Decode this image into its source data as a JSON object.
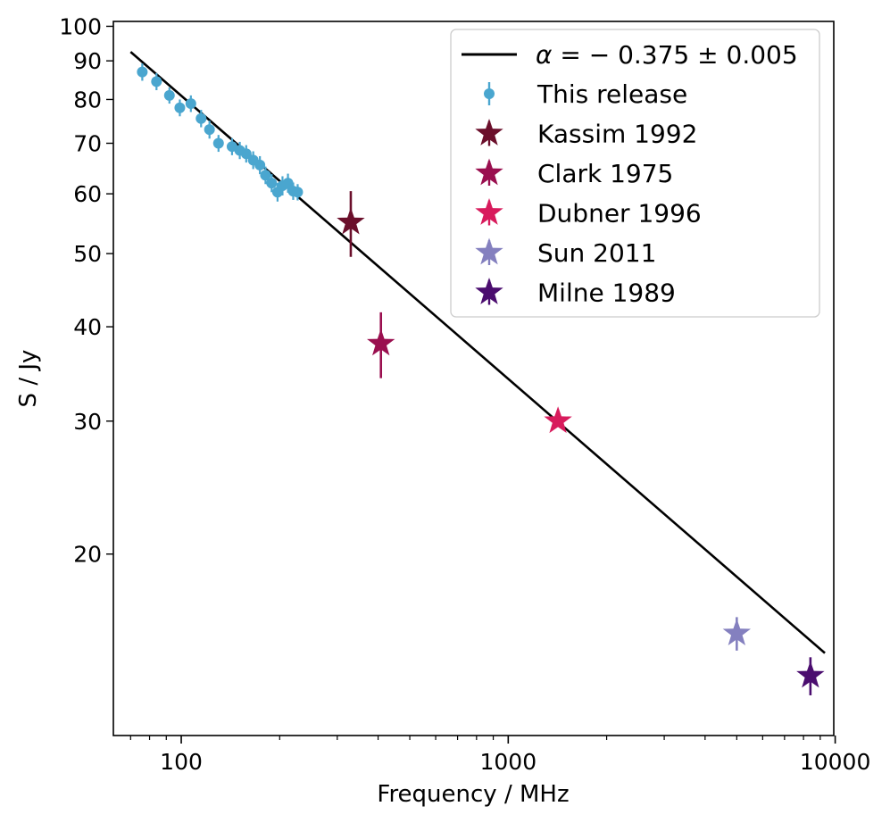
{
  "chart_data": {
    "type": "scatter",
    "xlabel": "Frequency / MHz",
    "ylabel": "S / Jy",
    "xscale": "log",
    "yscale": "log",
    "xlim": [
      62,
      9900
    ],
    "ylim": [
      11.5,
      101.5
    ],
    "x_ticks": [
      {
        "value": 100,
        "label": "100"
      },
      {
        "value": 1000,
        "label": "1000"
      },
      {
        "value": 10000,
        "label": "10000"
      }
    ],
    "y_ticks": [
      {
        "value": 20,
        "label": "20"
      },
      {
        "value": 30,
        "label": "30"
      },
      {
        "value": 40,
        "label": "40"
      },
      {
        "value": 50,
        "label": "50"
      },
      {
        "value": 60,
        "label": "60"
      },
      {
        "value": 70,
        "label": "70"
      },
      {
        "value": 80,
        "label": "80"
      },
      {
        "value": 90,
        "label": "90"
      },
      {
        "value": 100,
        "label": "100"
      }
    ],
    "fit_line": {
      "name_prefix": "α = ",
      "name_value": "− 0.375 ± 0.005",
      "alpha": -0.375,
      "x_range": [
        70,
        9300
      ],
      "ref_x": 70,
      "ref_y": 92.5,
      "color": "#000000"
    },
    "series": [
      {
        "name": "This release",
        "marker": "circle",
        "color": "#4aa6cf",
        "points": [
          {
            "x": 76,
            "y": 87,
            "err": 2.3
          },
          {
            "x": 84,
            "y": 84.5,
            "err": 2.2
          },
          {
            "x": 92,
            "y": 81,
            "err": 2.0
          },
          {
            "x": 99,
            "y": 78,
            "err": 2.0
          },
          {
            "x": 107,
            "y": 79,
            "err": 2.0
          },
          {
            "x": 115,
            "y": 75.5,
            "err": 2.0
          },
          {
            "x": 122,
            "y": 73,
            "err": 2.0
          },
          {
            "x": 130,
            "y": 70,
            "err": 1.8
          },
          {
            "x": 143,
            "y": 69.3,
            "err": 1.8
          },
          {
            "x": 151,
            "y": 68.5,
            "err": 1.8
          },
          {
            "x": 158,
            "y": 67.8,
            "err": 1.8
          },
          {
            "x": 166,
            "y": 66.5,
            "err": 1.8
          },
          {
            "x": 174,
            "y": 65.5,
            "err": 1.8
          },
          {
            "x": 181,
            "y": 63.5,
            "err": 1.7
          },
          {
            "x": 189,
            "y": 62,
            "err": 1.7
          },
          {
            "x": 197,
            "y": 60.3,
            "err": 1.7
          },
          {
            "x": 204,
            "y": 61.5,
            "err": 1.8
          },
          {
            "x": 212,
            "y": 62,
            "err": 1.8
          },
          {
            "x": 220,
            "y": 60.5,
            "err": 1.6
          },
          {
            "x": 227,
            "y": 60.3,
            "err": 1.5
          }
        ]
      },
      {
        "name": "Kassim 1992",
        "marker": "star",
        "color": "#6b0f2b",
        "points": [
          {
            "x": 330,
            "y": 55,
            "err": 5.5
          }
        ]
      },
      {
        "name": "Clark 1975",
        "marker": "star",
        "color": "#9a0f4f",
        "points": [
          {
            "x": 408,
            "y": 38,
            "err": 3.8
          }
        ]
      },
      {
        "name": "Dubner 1996",
        "marker": "star",
        "color": "#d81b5c",
        "points": [
          {
            "x": 1420,
            "y": 30,
            "err": 0
          }
        ]
      },
      {
        "name": "Sun 2011",
        "marker": "star",
        "color": "#8480bf",
        "points": [
          {
            "x": 5000,
            "y": 15.7,
            "err": 0.8
          }
        ]
      },
      {
        "name": "Milne 1989",
        "marker": "star",
        "color": "#4b0d6f",
        "points": [
          {
            "x": 8400,
            "y": 13.8,
            "err": 0.8
          }
        ]
      }
    ],
    "legend_position": "top-right"
  }
}
